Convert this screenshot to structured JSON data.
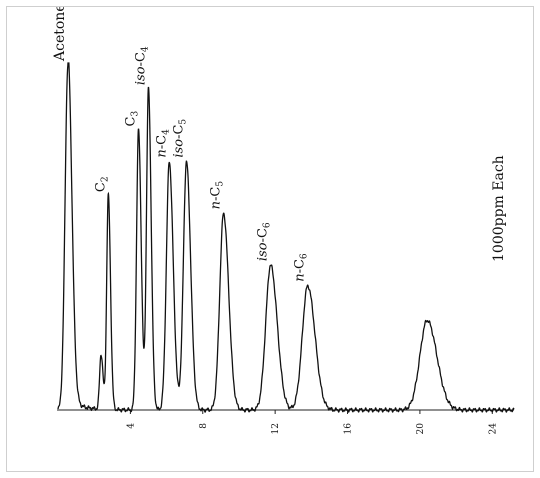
{
  "chart_data": {
    "type": "line",
    "xlim": [
      0,
      25.2
    ],
    "ylim": [
      0,
      100
    ],
    "x_ticks": [
      "4",
      "8",
      "12",
      "16",
      "20",
      "24"
    ],
    "x_tick_values": [
      4,
      8,
      12,
      16,
      20,
      24
    ],
    "annotation": "1000ppm Each",
    "peaks": [
      {
        "label": "Acetone",
        "rt": 0.55,
        "height": 100,
        "width": 0.16,
        "italic": ""
      },
      {
        "label": "",
        "rt": 2.38,
        "height": 16,
        "width": 0.08,
        "italic": ""
      },
      {
        "label": "C",
        "sub": "2",
        "rt": 2.78,
        "height": 62,
        "width": 0.09,
        "italic": ""
      },
      {
        "label": "C",
        "sub": "3",
        "rt": 4.45,
        "height": 81,
        "width": 0.11,
        "italic": ""
      },
      {
        "label": "-C",
        "sub": "4",
        "rt": 5.0,
        "height": 93,
        "width": 0.11,
        "italic": "iso"
      },
      {
        "label": "-C",
        "sub": "4",
        "rt": 6.15,
        "height": 72,
        "width": 0.16,
        "italic": "n"
      },
      {
        "label": "-C",
        "sub": "5",
        "rt": 7.1,
        "height": 72,
        "width": 0.17,
        "italic": "iso"
      },
      {
        "label": "-C",
        "sub": "5",
        "rt": 9.15,
        "height": 57,
        "width": 0.21,
        "italic": "n"
      },
      {
        "label": "-C",
        "sub": "6",
        "rt": 11.75,
        "height": 42,
        "width": 0.27,
        "italic": "iso"
      },
      {
        "label": "-C",
        "sub": "6",
        "rt": 13.8,
        "height": 36,
        "width": 0.3,
        "italic": "n"
      },
      {
        "label": "",
        "rt": 20.4,
        "height": 26,
        "width": 0.4,
        "italic": ""
      }
    ]
  }
}
